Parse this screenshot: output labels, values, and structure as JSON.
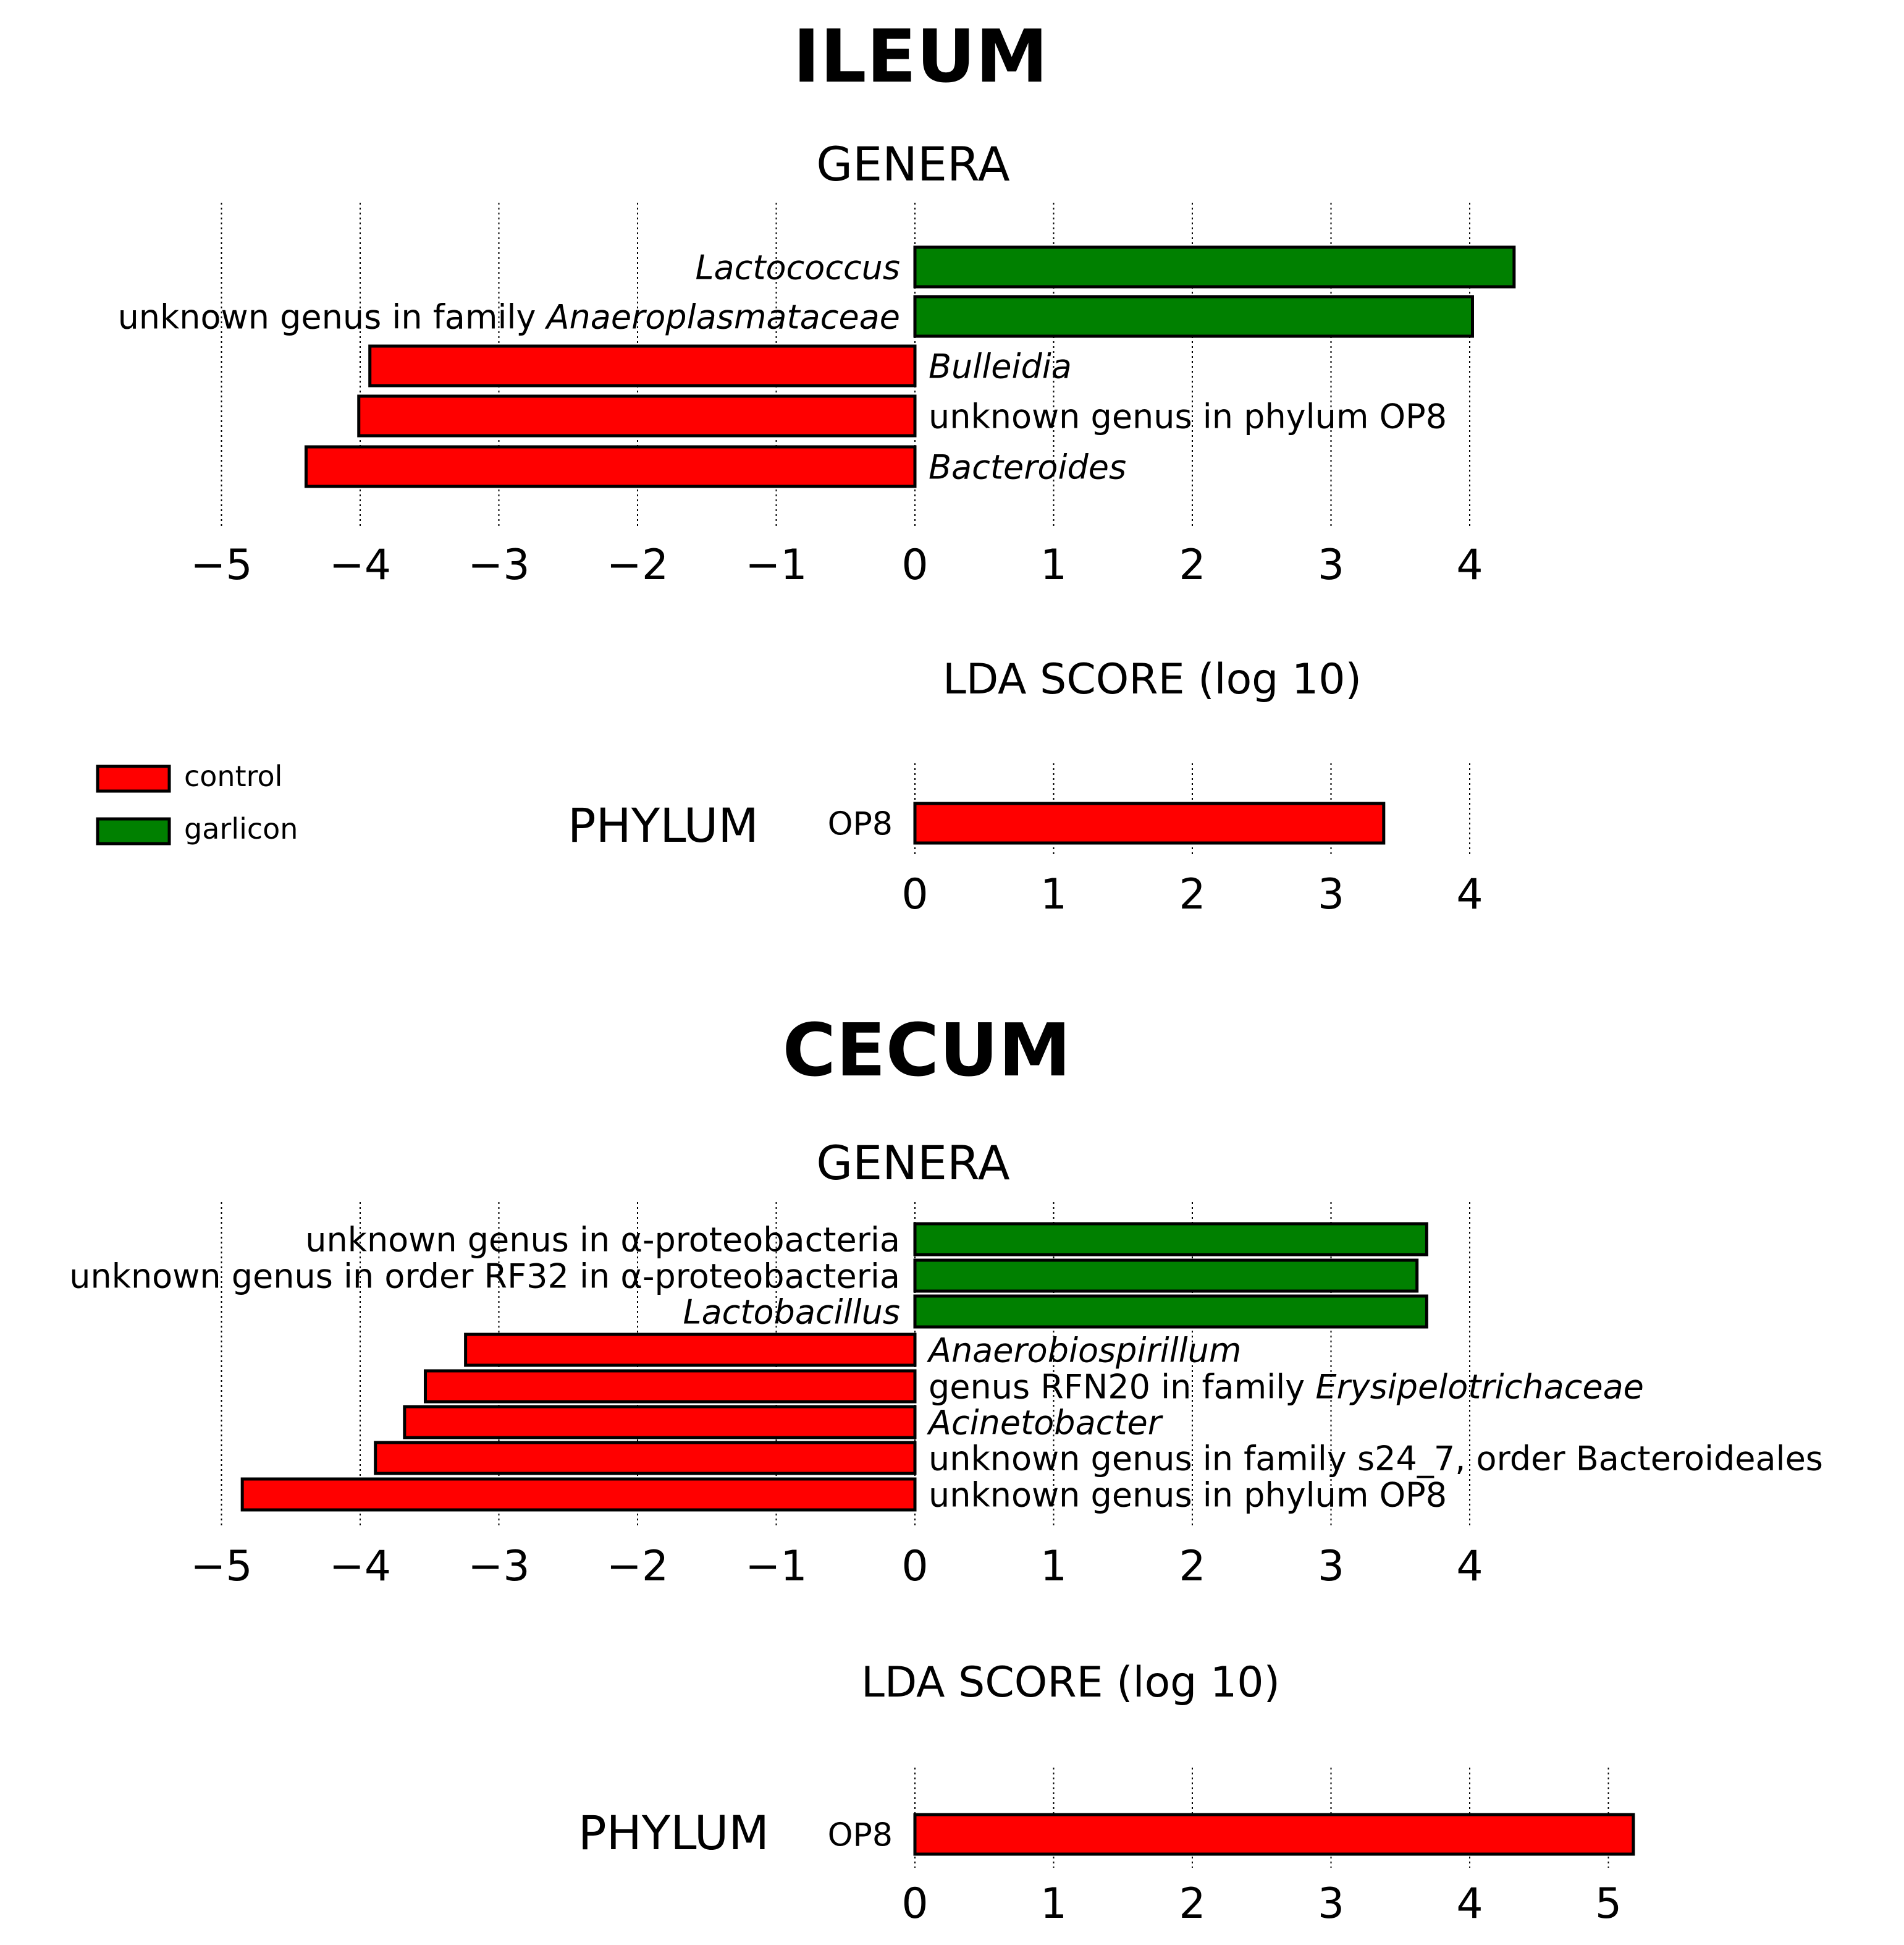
{
  "colors": {
    "control": "#ff0000",
    "garlicon": "#008000",
    "stroke": "#000000"
  },
  "legend": {
    "placement": "left",
    "items": [
      {
        "label": "control",
        "color": "#ff0000"
      },
      {
        "label": "garlicon",
        "color": "#008000"
      }
    ]
  },
  "chart_data": [
    {
      "type": "bar",
      "orientation": "horizontal",
      "section": "ILEUM",
      "title": "GENERA",
      "xlabel": "LDA SCORE (log 10)",
      "xlim": [
        -5,
        4
      ],
      "xticks": [
        "−5",
        "−4",
        "−3",
        "−2",
        "−1",
        "0",
        "1",
        "2",
        "3",
        "4"
      ],
      "grid": true,
      "bars": [
        {
          "label": "Lactococcus",
          "value": 4.32,
          "group": "garlicon",
          "italic": true
        },
        {
          "label_prefix": "unknown genus in family ",
          "label": "Anaeroplasmataceae",
          "value": 4.02,
          "group": "garlicon",
          "italic": true
        },
        {
          "label": "Bulleidia",
          "value": -3.93,
          "group": "control",
          "italic": true
        },
        {
          "label": "unknown genus in phylum OP8",
          "value": -4.01,
          "group": "control",
          "italic": false
        },
        {
          "label": "Bacteroides",
          "value": -4.39,
          "group": "control",
          "italic": true
        }
      ]
    },
    {
      "type": "bar",
      "orientation": "horizontal",
      "section": "ILEUM",
      "title": "PHYLUM",
      "xlim": [
        0,
        4
      ],
      "xticks": [
        "0",
        "1",
        "2",
        "3",
        "4"
      ],
      "grid": true,
      "bars": [
        {
          "label": "OP8",
          "value": 3.38,
          "group": "control",
          "italic": false
        }
      ]
    },
    {
      "type": "bar",
      "orientation": "horizontal",
      "section": "CECUM",
      "title": "GENERA",
      "xlabel": "LDA SCORE (log 10)",
      "xlim": [
        -5,
        4
      ],
      "xticks": [
        "−5",
        "−4",
        "−3",
        "−2",
        "−1",
        "0",
        "1",
        "2",
        "3",
        "4"
      ],
      "grid": true,
      "bars": [
        {
          "label": "unknown genus in α-proteobacteria",
          "value": 3.69,
          "group": "garlicon",
          "italic": false
        },
        {
          "label": "unknown genus in order RF32 in α-proteobacteria",
          "value": 3.62,
          "group": "garlicon",
          "italic": false
        },
        {
          "label": "Lactobacillus",
          "value": 3.69,
          "group": "garlicon",
          "italic": true
        },
        {
          "label": "Anaerobiospirillum",
          "value": -3.24,
          "group": "control",
          "italic": true
        },
        {
          "label_prefix": "genus RFN20 in family ",
          "label": "Erysipelotrichaceae",
          "value": -3.53,
          "group": "control",
          "italic": true
        },
        {
          "label": "Acinetobacter",
          "value": -3.68,
          "group": "control",
          "italic": true
        },
        {
          "label": "unknown genus in family s24_7, order Bacteroideales",
          "value": -3.89,
          "group": "control",
          "italic": false
        },
        {
          "label": "unknown genus in phylum OP8",
          "value": -4.85,
          "group": "control",
          "italic": false
        }
      ]
    },
    {
      "type": "bar",
      "orientation": "horizontal",
      "section": "CECUM",
      "title": "PHYLUM",
      "xlim": [
        0,
        5
      ],
      "xticks": [
        "0",
        "1",
        "2",
        "3",
        "4",
        "5"
      ],
      "grid": true,
      "bars": [
        {
          "label": "OP8",
          "value": 5.18,
          "group": "control",
          "italic": false
        }
      ]
    }
  ]
}
